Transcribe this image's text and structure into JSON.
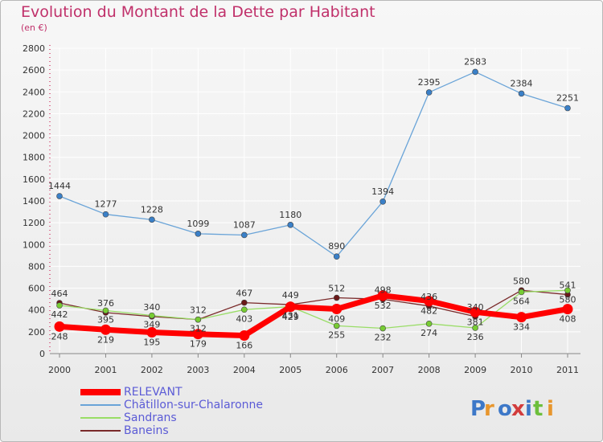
{
  "header": {
    "title": "Evolution du Montant de la Dette par Habitant",
    "unit": "(en €)"
  },
  "logo": {
    "text": "Proxiti"
  },
  "chart_data": {
    "type": "line",
    "title": "Evolution du Montant de la Dette par Habitant",
    "subtitle": "(en €)",
    "xlabel": "",
    "ylabel": "",
    "ylim": [
      0,
      2800
    ],
    "yticks": [
      0,
      200,
      400,
      600,
      800,
      1000,
      1200,
      1400,
      1600,
      1800,
      2000,
      2200,
      2400,
      2600,
      2800
    ],
    "grid": true,
    "legend_position": "bottom-left",
    "categories": [
      "2000",
      "2001",
      "2002",
      "2003",
      "2004",
      "2005",
      "2006",
      "2007",
      "2008",
      "2009",
      "2010",
      "2011"
    ],
    "series": [
      {
        "name": "RELEVANT",
        "color": "#ff0000",
        "values": [
          248,
          219,
          195,
          179,
          166,
          429,
          409,
          532,
          482,
          381,
          334,
          408
        ]
      },
      {
        "name": "Châtillon-sur-Chalaronne",
        "color": "#6aa4d8",
        "values": [
          1444,
          1277,
          1228,
          1099,
          1087,
          1180,
          890,
          1394,
          2395,
          2583,
          2384,
          2251
        ]
      },
      {
        "name": "Sandrans",
        "color": "#99dd66",
        "values": [
          442,
          395,
          349,
          312,
          403,
          431,
          255,
          232,
          274,
          236,
          564,
          580
        ]
      },
      {
        "name": "Baneins",
        "color": "#7a2a2a",
        "values": [
          464,
          376,
          340,
          312,
          467,
          449,
          512,
          498,
          436,
          340,
          580,
          541
        ]
      }
    ]
  }
}
